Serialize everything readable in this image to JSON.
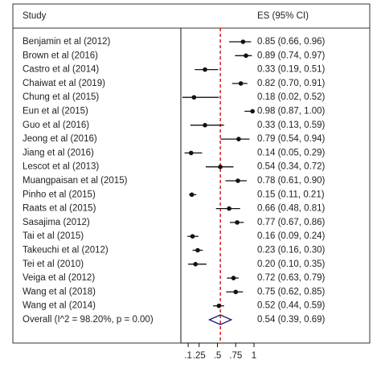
{
  "chart_data": {
    "type": "forest",
    "header_study": "Study",
    "header_es": "ES (95% CI)",
    "categories": [
      "Benjamin et al (2012)",
      "Brown et al (2016)",
      "Castro et al (2014)",
      "Chaiwat et al (2019)",
      "Chung et al (2015)",
      "Eun et al (2015)",
      "Guo et al (2016)",
      "Jeong et al (2016)",
      "Jiang et al (2016)",
      "Lescot et al (2013)",
      "Muangpaisan et al (2015)",
      "Pinho et al (2015)",
      "Raats et al (2015)",
      "Sasajima (2012)",
      "Tai et al (2015)",
      "Takeuchi et al (2012)",
      "Tei et al (2010)",
      "Veiga et al (2012)",
      "Wang et al (2018)",
      "Wang et al (2014)"
    ],
    "values": [
      0.85,
      0.89,
      0.33,
      0.82,
      0.18,
      0.98,
      0.33,
      0.79,
      0.14,
      0.54,
      0.78,
      0.15,
      0.66,
      0.77,
      0.16,
      0.23,
      0.2,
      0.72,
      0.75,
      0.52
    ],
    "ci_low": [
      0.66,
      0.74,
      0.19,
      0.7,
      0.02,
      0.87,
      0.13,
      0.54,
      0.05,
      0.34,
      0.61,
      0.11,
      0.48,
      0.67,
      0.09,
      0.16,
      0.1,
      0.63,
      0.62,
      0.44
    ],
    "ci_high": [
      0.96,
      0.97,
      0.51,
      0.91,
      0.52,
      1.0,
      0.59,
      0.94,
      0.29,
      0.72,
      0.9,
      0.21,
      0.81,
      0.86,
      0.24,
      0.3,
      0.35,
      0.79,
      0.85,
      0.59
    ],
    "value_labels": [
      "0.85 (0.66, 0.96)",
      "0.89 (0.74, 0.97)",
      "0.33 (0.19, 0.51)",
      "0.82 (0.70, 0.91)",
      "0.18 (0.02, 0.52)",
      "0.98 (0.87, 1.00)",
      "0.33 (0.13, 0.59)",
      "0.79 (0.54, 0.94)",
      "0.14 (0.05, 0.29)",
      "0.54 (0.34, 0.72)",
      "0.78 (0.61, 0.90)",
      "0.15 (0.11, 0.21)",
      "0.66 (0.48, 0.81)",
      "0.77 (0.67, 0.86)",
      "0.16 (0.09, 0.24)",
      "0.23 (0.16, 0.30)",
      "0.20 (0.10, 0.35)",
      "0.72 (0.63, 0.79)",
      "0.75 (0.62, 0.85)",
      "0.52 (0.44, 0.59)"
    ],
    "overall": {
      "label": "Overall  (I^2 = 98.20%, p = 0.00)",
      "value": 0.54,
      "ci_low": 0.39,
      "ci_high": 0.69,
      "value_label": "0.54 (0.39, 0.69)"
    },
    "xlim": [
      0,
      1
    ],
    "xticks": [
      {
        "value": 0.1,
        "label": ".1"
      },
      {
        "value": 0.25,
        "label": ".25"
      },
      {
        "value": 0.5,
        "label": ".5"
      },
      {
        "value": 0.75,
        "label": ".75"
      },
      1
    ],
    "color": "#111111",
    "diamond_color": "#1a1a7a",
    "reference_color": "#cc0000"
  }
}
